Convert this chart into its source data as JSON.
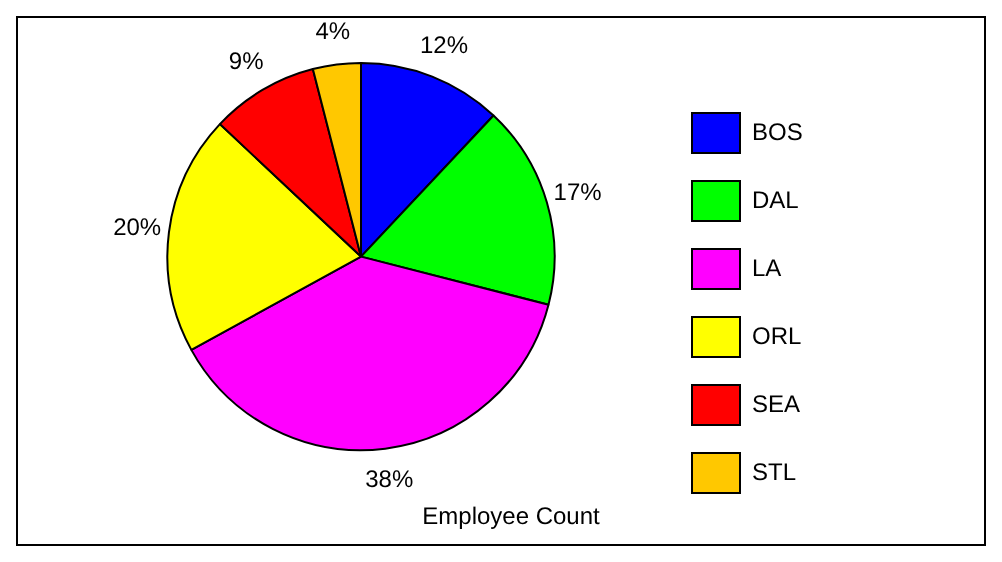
{
  "chart_data": {
    "type": "pie",
    "title": "Employee Count",
    "categories": [
      "BOS",
      "DAL",
      "LA",
      "ORL",
      "SEA",
      "STL"
    ],
    "values": [
      12,
      17,
      38,
      20,
      9,
      4
    ],
    "colors": [
      "#0000ff",
      "#00ff00",
      "#ff00ff",
      "#ffff00",
      "#ff0000",
      "#ffc800"
    ],
    "value_labels": [
      "12%",
      "17%",
      "38%",
      "20%",
      "9%",
      "4%"
    ],
    "legend": "right"
  }
}
